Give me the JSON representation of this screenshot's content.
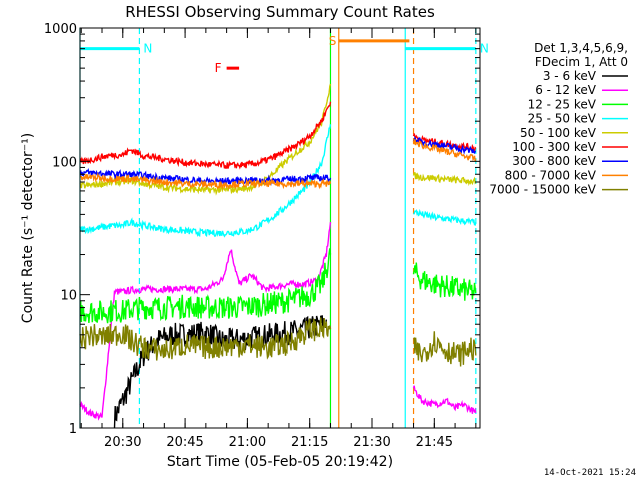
{
  "chart_data": {
    "type": "line",
    "title": "RHESSI Observing Summary Count Rates",
    "xlabel": "Start Time (05-Feb-05 20:19:42)",
    "ylabel": "Count Rate (s⁻¹ detector⁻¹)",
    "yscale": "log",
    "ylim": [
      1,
      1000
    ],
    "xlim": [
      "20:19:42",
      "21:56:00"
    ],
    "x_ticks": [
      "20:30",
      "20:45",
      "21:00",
      "21:15",
      "21:30",
      "21:45"
    ],
    "y_ticks": [
      "1",
      "10",
      "100",
      "1000"
    ],
    "legend_header": [
      "Det 1,3,4,5,6,9,",
      "FDecim 1, Att 0"
    ],
    "legend_position": "right",
    "series": [
      {
        "name": "3 - 6 keV",
        "color": "#000000",
        "x": [
          "20:28",
          "20:30",
          "20:32",
          "20:35",
          "20:38",
          "20:42",
          "20:46",
          "20:50",
          "20:54",
          "20:58",
          "21:02",
          "21:06",
          "21:10",
          "21:14",
          "21:18",
          "21:19"
        ],
        "y": [
          1.2,
          1.6,
          2.2,
          3.5,
          4.5,
          5.0,
          5.0,
          5.2,
          4.5,
          4.6,
          4.8,
          5.0,
          5.2,
          5.5,
          6.0,
          6.5
        ]
      },
      {
        "name": "6 - 12 keV",
        "color": "#ff00ff",
        "x": [
          "20:19:42",
          "20:22",
          "20:25",
          "20:28",
          "20:30",
          "20:32",
          "20:35",
          "20:40",
          "20:45",
          "20:50",
          "20:54",
          "20:56",
          "20:58",
          "21:01",
          "21:04",
          "21:07",
          "21:10",
          "21:14",
          "21:17",
          "21:19",
          "21:20",
          "21:40",
          "21:42",
          "21:45",
          "21:48",
          "21:50",
          "21:52",
          "21:55"
        ],
        "y": [
          1.5,
          1.3,
          1.2,
          10.5,
          10.5,
          10.8,
          11,
          11,
          11,
          11,
          13,
          22,
          12,
          14,
          11,
          11.5,
          12,
          12,
          13,
          20,
          35,
          2.0,
          1.6,
          1.5,
          1.6,
          1.4,
          1.5,
          1.3
        ]
      },
      {
        "name": "12 - 25 keV",
        "color": "#00ff00",
        "x": [
          "20:19:42",
          "20:22",
          "20:25",
          "20:28",
          "20:30",
          "20:32",
          "20:35",
          "20:40",
          "20:45",
          "20:50",
          "20:55",
          "21:00",
          "21:05",
          "21:10",
          "21:15",
          "21:18",
          "21:20",
          "21:40",
          "21:42",
          "21:45",
          "21:48",
          "21:51",
          "21:54",
          "21:55"
        ],
        "y": [
          7.5,
          7.5,
          7.4,
          7.6,
          7.5,
          7.8,
          8.0,
          8.0,
          8.2,
          8.0,
          8.0,
          8.1,
          8.5,
          9.0,
          10.0,
          12,
          20,
          15,
          13,
          12,
          11.5,
          11,
          10.5,
          10.3
        ]
      },
      {
        "name": "25 - 50 keV",
        "color": "#00ffff",
        "x": [
          "20:19:42",
          "20:22",
          "20:25",
          "20:28",
          "20:30",
          "20:32",
          "20:35",
          "20:40",
          "20:45",
          "20:50",
          "20:55",
          "21:00",
          "21:03",
          "21:06",
          "21:09",
          "21:12",
          "21:15",
          "21:18",
          "21:20",
          "21:40",
          "21:42",
          "21:45",
          "21:48",
          "21:51",
          "21:54",
          "21:55"
        ],
        "y": [
          31,
          31,
          32,
          33,
          33,
          35,
          33,
          31,
          30,
          29,
          29,
          30,
          33,
          38,
          45,
          55,
          68,
          100,
          190,
          42,
          40,
          38,
          37,
          36,
          35,
          35
        ]
      },
      {
        "name": "50 - 100 keV",
        "color": "#cccc00",
        "x": [
          "20:19:42",
          "20:22",
          "20:25",
          "20:28",
          "20:30",
          "20:32",
          "20:35",
          "20:40",
          "20:45",
          "20:50",
          "20:55",
          "21:00",
          "21:03",
          "21:06",
          "21:09",
          "21:12",
          "21:15",
          "21:18",
          "21:20",
          "21:40",
          "21:42",
          "21:45",
          "21:48",
          "21:51",
          "21:54",
          "21:55"
        ],
        "y": [
          65,
          66,
          68,
          70,
          70,
          72,
          68,
          64,
          62,
          61,
          61,
          63,
          68,
          80,
          98,
          118,
          140,
          200,
          380,
          78,
          76,
          75,
          73,
          72,
          71,
          70
        ]
      },
      {
        "name": "100 - 300 keV",
        "color": "#ff0000",
        "x": [
          "20:19:42",
          "20:22",
          "20:25",
          "20:28",
          "20:30",
          "20:32",
          "20:35",
          "20:40",
          "20:45",
          "20:50",
          "20:55",
          "21:00",
          "21:03",
          "21:06",
          "21:09",
          "21:12",
          "21:15",
          "21:18",
          "21:20",
          "21:40",
          "21:42",
          "21:45",
          "21:48",
          "21:51",
          "21:54",
          "21:55"
        ],
        "y": [
          98,
          102,
          108,
          112,
          112,
          122,
          110,
          104,
          98,
          95,
          93,
          94,
          98,
          106,
          118,
          133,
          155,
          205,
          280,
          155,
          145,
          140,
          135,
          130,
          127,
          125
        ]
      },
      {
        "name": "300 - 800 keV",
        "color": "#0000ff",
        "x": [
          "20:19:42",
          "20:22",
          "20:25",
          "20:28",
          "20:30",
          "20:32",
          "20:35",
          "20:40",
          "20:45",
          "20:50",
          "20:55",
          "21:00",
          "21:05",
          "21:10",
          "21:15",
          "21:18",
          "21:20",
          "21:40",
          "21:42",
          "21:45",
          "21:48",
          "21:51",
          "21:54",
          "21:55"
        ],
        "y": [
          82,
          82,
          81,
          80,
          80,
          80,
          78,
          75,
          73,
          71,
          71,
          72,
          72,
          73,
          75,
          75,
          75,
          145,
          140,
          135,
          130,
          125,
          120,
          118
        ]
      },
      {
        "name": "800 - 7000 keV",
        "color": "#ff8000",
        "x": [
          "20:19:42",
          "20:22",
          "20:25",
          "20:28",
          "20:30",
          "20:32",
          "20:35",
          "20:40",
          "20:45",
          "20:50",
          "20:55",
          "21:00",
          "21:05",
          "21:10",
          "21:15",
          "21:18",
          "21:20",
          "21:40",
          "21:42",
          "21:45",
          "21:48",
          "21:51",
          "21:54",
          "21:55"
        ],
        "y": [
          76,
          76,
          75,
          74,
          74,
          74,
          72,
          70,
          68,
          67,
          67,
          68,
          68,
          68,
          68,
          68,
          68,
          140,
          132,
          125,
          118,
          112,
          106,
          104
        ]
      },
      {
        "name": "7000 - 15000 keV",
        "color": "#808000",
        "x": [
          "20:19:42",
          "20:22",
          "20:25",
          "20:28",
          "20:30",
          "20:32",
          "20:35",
          "20:40",
          "20:45",
          "20:50",
          "20:55",
          "21:00",
          "21:05",
          "21:10",
          "21:15",
          "21:18",
          "21:20",
          "21:40",
          "21:42",
          "21:45",
          "21:48",
          "21:51",
          "21:54",
          "21:55"
        ],
        "y": [
          4.5,
          5.0,
          4.8,
          5.0,
          5.2,
          4.5,
          4.0,
          3.8,
          4.2,
          4.0,
          4.1,
          4.2,
          4.0,
          4.3,
          5.5,
          5.5,
          5.5,
          4.0,
          3.5,
          4.5,
          3.8,
          3.5,
          4.0,
          3.5
        ]
      }
    ],
    "annotations": {
      "flags": [
        {
          "label": "N",
          "color": "#00ffff",
          "x_start": "20:19:42",
          "x_end": "20:34",
          "y": 700
        },
        {
          "label": "N",
          "color": "#00ffff",
          "x_start": "21:38",
          "x_end": "21:55",
          "y": 700
        },
        {
          "label": "S",
          "color": "#ff8000",
          "x_start": "21:22",
          "x_end": "21:39",
          "y": 800
        },
        {
          "label": "F",
          "color": "#ff0000",
          "x_start": "20:55",
          "x_end": "20:58",
          "y": 500
        }
      ],
      "vlines": [
        {
          "x": "20:19:42",
          "color": "#00ffff",
          "style": "solid"
        },
        {
          "x": "20:34",
          "color": "#00ffff",
          "style": "dashed"
        },
        {
          "x": "21:20",
          "color": "#00ff00",
          "style": "solid"
        },
        {
          "x": "21:22",
          "color": "#ff8000",
          "style": "solid"
        },
        {
          "x": "21:38",
          "color": "#00ffff",
          "style": "solid"
        },
        {
          "x": "21:40",
          "color": "#ff8000",
          "style": "dashed"
        },
        {
          "x": "21:55",
          "color": "#00ffff",
          "style": "dashed"
        }
      ],
      "gaps": [
        [
          "21:20",
          "21:40"
        ]
      ]
    },
    "timestamp": "14-Oct-2021 15:24"
  }
}
